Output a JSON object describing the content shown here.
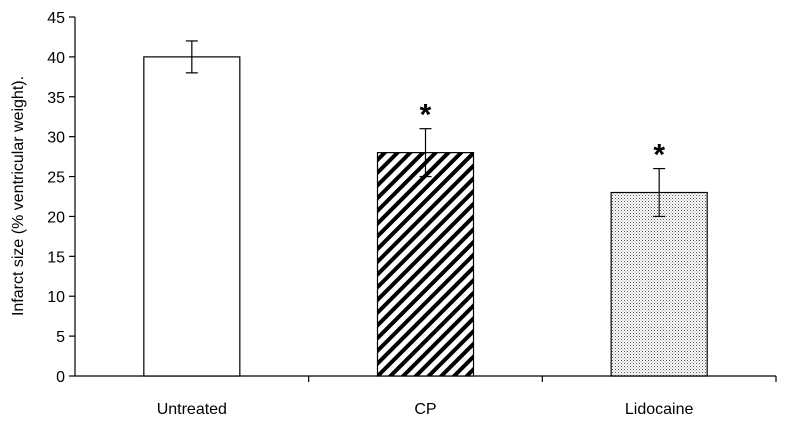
{
  "chart_data": {
    "type": "bar",
    "categories": [
      "Untreated",
      "CP",
      "Lidocaine"
    ],
    "values": [
      40,
      28,
      23
    ],
    "errors": [
      2,
      3,
      3
    ],
    "patterns": [
      "none",
      "diagonal-hatch",
      "dots"
    ],
    "annotations": [
      "",
      "*",
      "*"
    ],
    "title": "",
    "xlabel": "",
    "ylabel": "Infarct size (% ventricular weight).",
    "ylim": [
      0,
      45
    ],
    "yticks": [
      0,
      5,
      10,
      15,
      20,
      25,
      30,
      35,
      40,
      45
    ],
    "grid": false,
    "legend": "none"
  }
}
